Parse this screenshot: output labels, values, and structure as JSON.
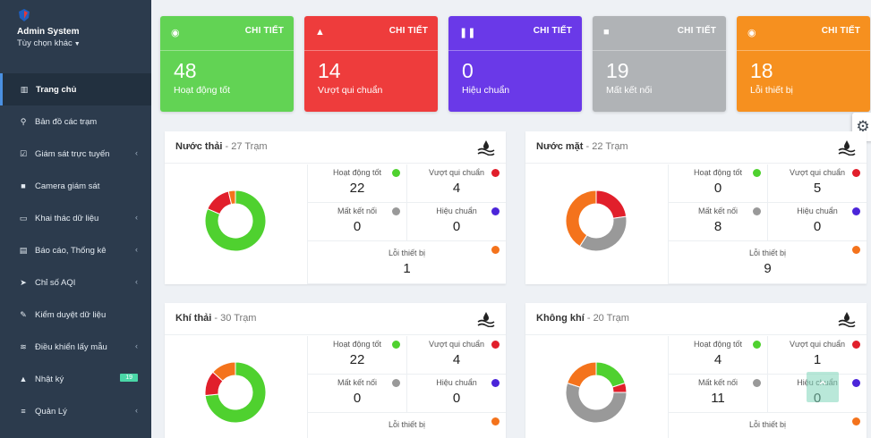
{
  "sidebar": {
    "app_name": "Admin System",
    "more_options": "Tùy chọn khác",
    "items": [
      {
        "label": "Trang chủ",
        "icon": "bar-chart-icon",
        "glyph": "▥",
        "active": true,
        "chevron": false
      },
      {
        "label": "Bản đồ các trạm",
        "icon": "map-pin-icon",
        "glyph": "⚲",
        "chevron": false
      },
      {
        "label": "Giám sát trực tuyến",
        "icon": "checkbox-icon",
        "glyph": "☑",
        "chevron": true
      },
      {
        "label": "Camera giám sát",
        "icon": "video-camera-icon",
        "glyph": "■",
        "chevron": false
      },
      {
        "label": "Khai thác dữ liệu",
        "icon": "folder-icon",
        "glyph": "▭",
        "chevron": true
      },
      {
        "label": "Báo cáo, Thống kê",
        "icon": "report-icon",
        "glyph": "▤",
        "chevron": true
      },
      {
        "label": "Chỉ số AQI",
        "icon": "send-icon",
        "glyph": "➤",
        "chevron": true
      },
      {
        "label": "Kiểm duyệt dữ liệu",
        "icon": "edit-icon",
        "glyph": "✎",
        "chevron": false
      },
      {
        "label": "Điều khiển lấy mẫu",
        "icon": "wifi-icon",
        "glyph": "≋",
        "chevron": true
      },
      {
        "label": "Nhật ký",
        "icon": "bell-icon",
        "glyph": "▲",
        "chevron": false,
        "badge": "19"
      },
      {
        "label": "Quản Lý",
        "icon": "database-icon",
        "glyph": "≡",
        "chevron": true
      }
    ]
  },
  "stats": [
    {
      "link": "CHI TIẾT",
      "value": "48",
      "label": "Hoạt động tốt",
      "icon": "check-circle-icon",
      "glyph": "◉",
      "color": "#62d354",
      "cls": "green"
    },
    {
      "link": "CHI TIẾT",
      "value": "14",
      "label": "Vượt qui chuẩn",
      "icon": "warning-icon",
      "glyph": "▲",
      "color": "#ee3c3c",
      "cls": "red"
    },
    {
      "link": "CHI TIẾT",
      "value": "0",
      "label": "Hiệu chuẩn",
      "icon": "pause-icon",
      "glyph": "❚❚",
      "color": "#6a39e8",
      "cls": "purple"
    },
    {
      "link": "CHI TIẾT",
      "value": "19",
      "label": "Mất kết nối",
      "icon": "stop-icon",
      "glyph": "■",
      "color": "#b0b3b6",
      "cls": "gray"
    },
    {
      "link": "CHI TIẾT",
      "value": "18",
      "label": "Lỗi thiết bị",
      "icon": "stop-circle-icon",
      "glyph": "◉",
      "color": "#f6901f",
      "cls": "orange"
    }
  ],
  "colors": {
    "good": "#4fd12f",
    "exceed": "#e11f2b",
    "disconnected": "#999999",
    "calibration": "#4b25d9",
    "device_error": "#f4731c"
  },
  "panels": [
    {
      "name": "Nước thải",
      "count": "- 27 Trạm",
      "icon": "water-icon",
      "good": {
        "label": "Hoạt động tốt",
        "value": "22"
      },
      "exceed": {
        "label": "Vượt qui chuẩn",
        "value": "4"
      },
      "disconnected": {
        "label": "Mất kết nối",
        "value": "0"
      },
      "calibration": {
        "label": "Hiệu chuẩn",
        "value": "0"
      },
      "error": {
        "label": "Lỗi thiết bị",
        "value": "1"
      }
    },
    {
      "name": "Nước mặt",
      "count": "- 22 Trạm",
      "icon": "water-icon",
      "good": {
        "label": "Hoạt động tốt",
        "value": "0"
      },
      "exceed": {
        "label": "Vượt qui chuẩn",
        "value": "5"
      },
      "disconnected": {
        "label": "Mất kết nối",
        "value": "8"
      },
      "calibration": {
        "label": "Hiệu chuẩn",
        "value": "0"
      },
      "error": {
        "label": "Lỗi thiết bị",
        "value": "9"
      }
    },
    {
      "name": "Khí thải",
      "count": "- 30 Trạm",
      "icon": "water-icon",
      "good": {
        "label": "Hoạt động tốt",
        "value": "22"
      },
      "exceed": {
        "label": "Vượt qui chuẩn",
        "value": "4"
      },
      "disconnected": {
        "label": "Mất kết nối",
        "value": "0"
      },
      "calibration": {
        "label": "Hiệu chuẩn",
        "value": "0"
      },
      "error": {
        "label": "Lỗi thiết bị",
        "value": ""
      }
    },
    {
      "name": "Không khí",
      "count": "- 20 Trạm",
      "icon": "water-icon",
      "good": {
        "label": "Hoạt động tốt",
        "value": "4"
      },
      "exceed": {
        "label": "Vượt qui chuẩn",
        "value": "1"
      },
      "disconnected": {
        "label": "Mất kết nối",
        "value": "11"
      },
      "calibration": {
        "label": "Hiệu chuẩn",
        "value": "0"
      },
      "error": {
        "label": "Lỗi thiết bị",
        "value": ""
      }
    }
  ],
  "chart_data": [
    {
      "type": "pie",
      "categories": [
        "Hoạt động tốt",
        "Vượt qui chuẩn",
        "Mất kết nối",
        "Hiệu chuẩn",
        "Lỗi thiết bị"
      ],
      "values": [
        22,
        4,
        0,
        0,
        1
      ]
    },
    {
      "type": "pie",
      "categories": [
        "Hoạt động tốt",
        "Vượt qui chuẩn",
        "Mất kết nối",
        "Hiệu chuẩn",
        "Lỗi thiết bị"
      ],
      "values": [
        0,
        5,
        8,
        0,
        9
      ]
    },
    {
      "type": "pie",
      "categories": [
        "Hoạt động tốt",
        "Vượt qui chuẩn",
        "Mất kết nối",
        "Hiệu chuẩn",
        "Lỗi thiết bị"
      ],
      "values": [
        22,
        4,
        0,
        0,
        4
      ]
    },
    {
      "type": "pie",
      "categories": [
        "Hoạt động tốt",
        "Vượt qui chuẩn",
        "Mất kết nối",
        "Hiệu chuẩn",
        "Lỗi thiết bị"
      ],
      "values": [
        4,
        1,
        11,
        0,
        4
      ]
    }
  ]
}
